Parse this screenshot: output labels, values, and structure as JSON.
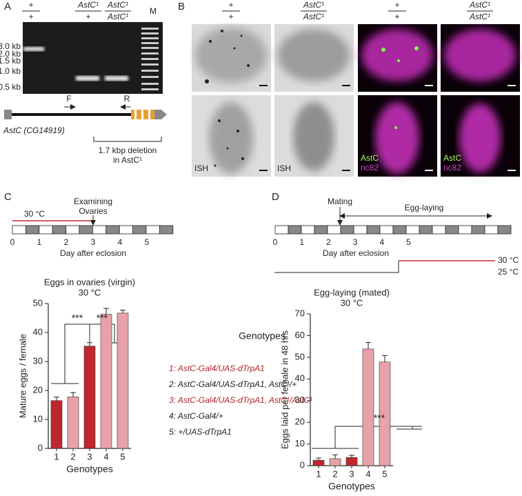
{
  "panel_a": {
    "label": "A",
    "lanes": [
      {
        "top": "+",
        "bottom": "+"
      },
      {
        "top": "AstC¹",
        "bottom": "+"
      },
      {
        "top": "AstC¹",
        "bottom": "AstC¹"
      }
    ],
    "marker": "M",
    "sizes": [
      "3.0 kb",
      "2.0 kb",
      "1.5 kb",
      "1.0 kb",
      "0.5 kb"
    ],
    "primer_f": "F",
    "primer_r": "R",
    "gene": "AstC (CG14919)",
    "deletion": [
      "1.7 kbp deletion",
      "in AstC¹"
    ]
  },
  "panel_b": {
    "label": "B",
    "headers": [
      {
        "top": "+",
        "bottom": "+"
      },
      {
        "top": "AstC¹",
        "bottom": "AstC¹"
      },
      {
        "top": "+",
        "bottom": "+"
      },
      {
        "top": "AstC¹",
        "bottom": "AstC¹"
      }
    ],
    "ish": "ISH",
    "stain_astc": "AstC",
    "stain_nc82": "nc82"
  },
  "panel_c": {
    "label": "C",
    "event": [
      "Examining",
      "Ovaries"
    ],
    "temperature": "30 °C",
    "days": [
      0,
      1,
      2,
      3,
      4,
      5
    ],
    "day_label": "Day after eclosion"
  },
  "panel_d": {
    "label": "D",
    "event": "Mating",
    "period": "Egg-laying",
    "days": [
      0,
      1,
      2,
      3,
      4,
      5
    ],
    "day_label": "Day after eclosion",
    "temperatures": [
      "30 °C",
      "25 °C"
    ]
  },
  "genotypes": {
    "title": "Genotypes",
    "items": [
      "1: AstC-Gal4/UAS-dTrpA1",
      "2: AstC-Gal4/UAS-dTrpA1, AstC¹/+",
      "3: AstC-Gal4/UAS-dTrpA1, AstC¹/AstC¹",
      "4: AstC-Gal4/+",
      "5: +/UAS-dTrpA1"
    ],
    "colors": [
      "#b5232a",
      "#222222",
      "#b5232a",
      "#222222",
      "#222222"
    ]
  },
  "chart_data": [
    {
      "type": "bar",
      "title": "Eggs in ovaries (virgin)",
      "subtitle": "30 °C",
      "categories": [
        "1",
        "2",
        "3",
        "4",
        "5"
      ],
      "values": [
        16.5,
        17.8,
        35.3,
        46.3,
        46.7
      ],
      "errors": [
        1.2,
        1.5,
        1.2,
        2.0,
        1.0
      ],
      "colors": [
        "#c0272d",
        "#e8a1a6",
        "#c0272d",
        "#e8a1a6",
        "#e8a1a6"
      ],
      "ylabel": "Mature eggs / female",
      "xlabel": "Genotypes",
      "ylim": [
        0,
        50
      ],
      "yticks": [
        0,
        10,
        20,
        30,
        40,
        50
      ],
      "annotations": [
        "***",
        "***"
      ]
    },
    {
      "type": "bar",
      "title": "Egg-laying (mated)",
      "subtitle": "30 °C",
      "categories": [
        "1",
        "2",
        "3",
        "4",
        "5"
      ],
      "values": [
        2.5,
        3.2,
        3.8,
        53.8,
        47.8
      ],
      "errors": [
        1.0,
        1.8,
        1.0,
        3.0,
        3.0
      ],
      "colors": [
        "#c0272d",
        "#e8a1a6",
        "#c0272d",
        "#e8a1a6",
        "#e8a1a6"
      ],
      "ylabel": "Eggs laid per female in 48 hrs",
      "xlabel": "Genotypes",
      "ylim": [
        0,
        70
      ],
      "yticks": [
        0,
        10,
        20,
        30,
        40,
        50,
        60,
        70
      ],
      "annotations": [
        "***"
      ]
    }
  ]
}
